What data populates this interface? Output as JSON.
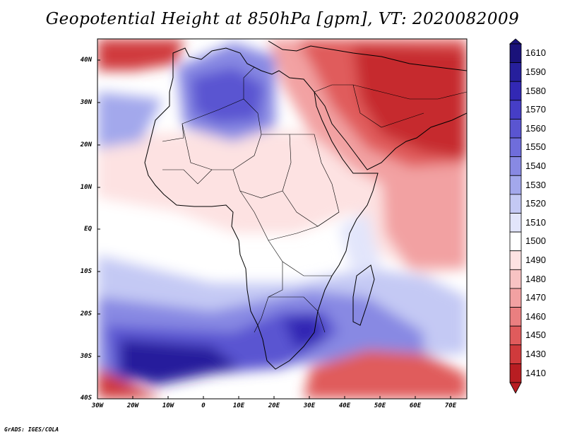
{
  "title": "Geopotential Height at 850hPa [gpm], VT: 2020082009",
  "credit": "GrADS: IGES/COLA",
  "lat_labels": [
    "40N",
    "30N",
    "20N",
    "10N",
    "EQ",
    "10S",
    "20S",
    "30S",
    "40S"
  ],
  "lon_labels": [
    "30W",
    "20W",
    "10W",
    "0",
    "10E",
    "20E",
    "30E",
    "40E",
    "50E",
    "60E",
    "70E"
  ],
  "colorbar": {
    "levels": [
      "1610",
      "1590",
      "1580",
      "1570",
      "1560",
      "1550",
      "1540",
      "1530",
      "1520",
      "1510",
      "1500",
      "1490",
      "1480",
      "1470",
      "1460",
      "1450",
      "1430",
      "1410"
    ],
    "colors": [
      "#1a127a",
      "#261f9c",
      "#3228b4",
      "#463ec6",
      "#5a55d1",
      "#6f6ddb",
      "#8889e3",
      "#a3a8ec",
      "#c4c9f4",
      "#e2e5fb",
      "#ffffff",
      "#fde2e2",
      "#f8c3c3",
      "#f2a1a2",
      "#ea7f80",
      "#e05b5c",
      "#d03a3c",
      "#b81d22"
    ]
  },
  "chart_data": {
    "type": "heatmap",
    "title": "Geopotential Height at 850hPa [gpm], VT: 2020082009",
    "variable": "geopotential height",
    "level_hPa": 850,
    "units": "gpm",
    "valid_time": "2020082009",
    "lon_range": [
      -30,
      75
    ],
    "lat_range": [
      -40,
      45
    ],
    "contour_levels": [
      1410,
      1430,
      1450,
      1460,
      1470,
      1480,
      1490,
      1500,
      1510,
      1520,
      1530,
      1540,
      1550,
      1560,
      1570,
      1580,
      1590,
      1610
    ]
  }
}
